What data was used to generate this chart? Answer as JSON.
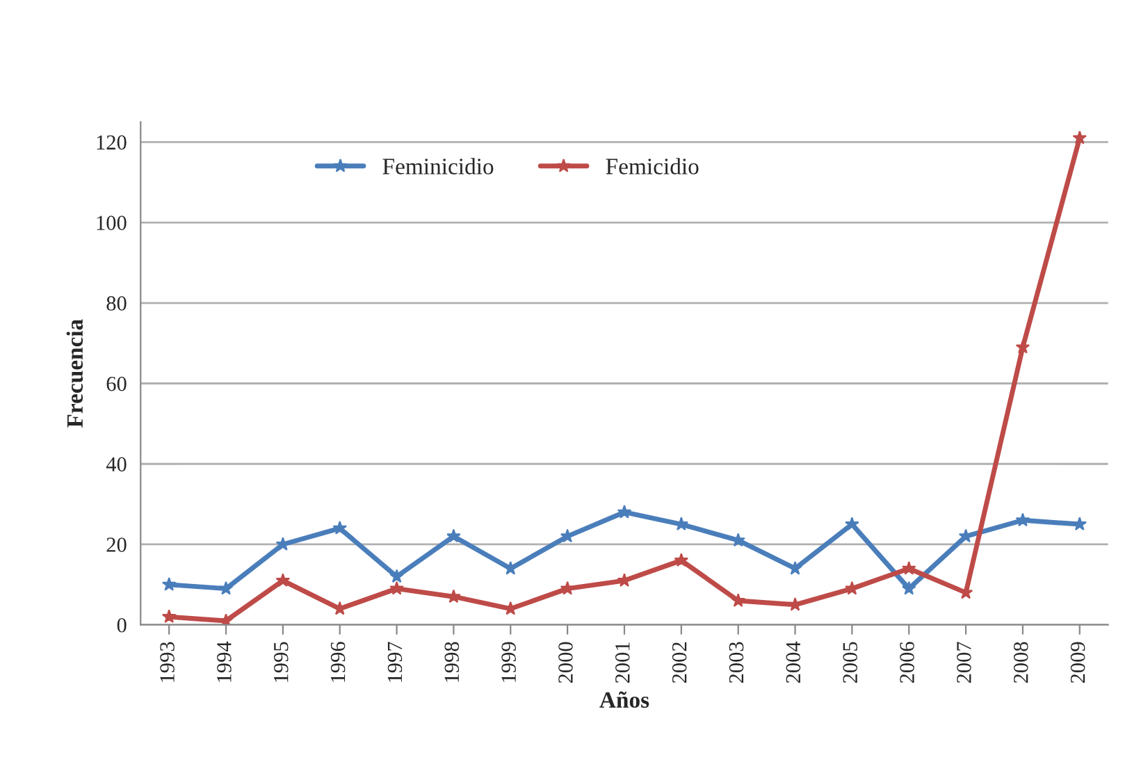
{
  "chart_data": {
    "type": "line",
    "xlabel": "Años",
    "ylabel": "Frecuencia",
    "categories": [
      "1993",
      "1994",
      "1995",
      "1996",
      "1997",
      "1998",
      "1999",
      "2000",
      "2001",
      "2002",
      "2003",
      "2004",
      "2005",
      "2006",
      "2007",
      "2008",
      "2009"
    ],
    "series": [
      {
        "name": "Feminicidio",
        "color": "#4a7ebb",
        "values": [
          10,
          9,
          20,
          24,
          12,
          22,
          14,
          22,
          28,
          25,
          21,
          14,
          25,
          9,
          22,
          26,
          25
        ]
      },
      {
        "name": "Femicidio",
        "color": "#be4b48",
        "values": [
          2,
          1,
          11,
          4,
          9,
          7,
          4,
          9,
          11,
          16,
          6,
          5,
          9,
          14,
          8,
          69,
          121
        ]
      }
    ],
    "ylim": [
      0,
      125
    ],
    "yticks": [
      0,
      20,
      40,
      60,
      80,
      100,
      120
    ],
    "grid": "y",
    "legend": "top",
    "marker": "star",
    "line_style": "solid"
  }
}
